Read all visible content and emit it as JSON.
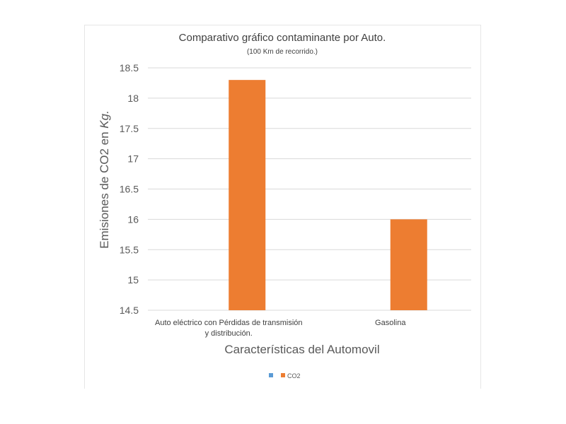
{
  "chart_data": {
    "type": "bar",
    "title": "Comparativo gráfico contaminante por Auto.",
    "subtitle": "(100 Km de recorrido.)",
    "xlabel": "Características del Automovil",
    "ylabel_prefix": "Emisiones de CO2 en ",
    "ylabel_unit": "Kg.",
    "categories": [
      [
        "Auto eléctrico con Pérdidas de transmisión",
        "y distribución."
      ],
      [
        "Gasolina"
      ]
    ],
    "series": [
      {
        "name": "",
        "color": "#5b9bd5",
        "values": [
          null,
          null
        ]
      },
      {
        "name": "CO2",
        "color": "#ed7d31",
        "values": [
          18.3,
          16.0
        ]
      }
    ],
    "ylim": [
      14.5,
      18.5
    ],
    "yticks": [
      "14.5",
      "15",
      "15.5",
      "16",
      "16.5",
      "17",
      "17.5",
      "18",
      "18.5"
    ],
    "grid": true,
    "legend": "bottom",
    "grid_color": "#d9d9d9"
  }
}
